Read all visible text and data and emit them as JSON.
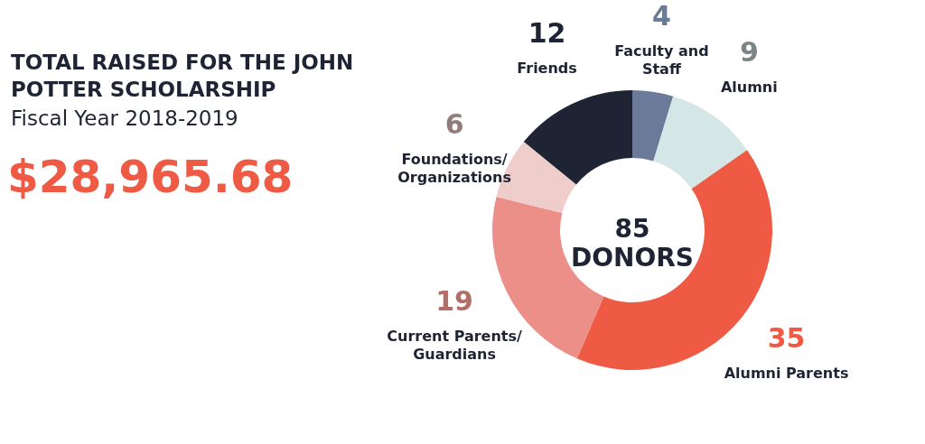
{
  "chart_data": {
    "type": "donut",
    "title": "TOTAL RAISED FOR THE JOHN POTTER SCHOLARSHIP",
    "subtitle": "Fiscal Year 2018-2019",
    "annotations": [
      "$28,965.68",
      "85 DONORS"
    ],
    "categories": [
      "Faculty and Staff",
      "Alumni",
      "Alumni Parents",
      "Current Parents/Guardians",
      "Foundations/Organizations",
      "Friends"
    ],
    "values": [
      4,
      9,
      35,
      19,
      6,
      12
    ],
    "colors": [
      "#6b7a99",
      "#d5e6e6",
      "#ef5a45",
      "#eb8f88",
      "#efcdcb",
      "#1e2433"
    ],
    "data_labels": true
  }
}
